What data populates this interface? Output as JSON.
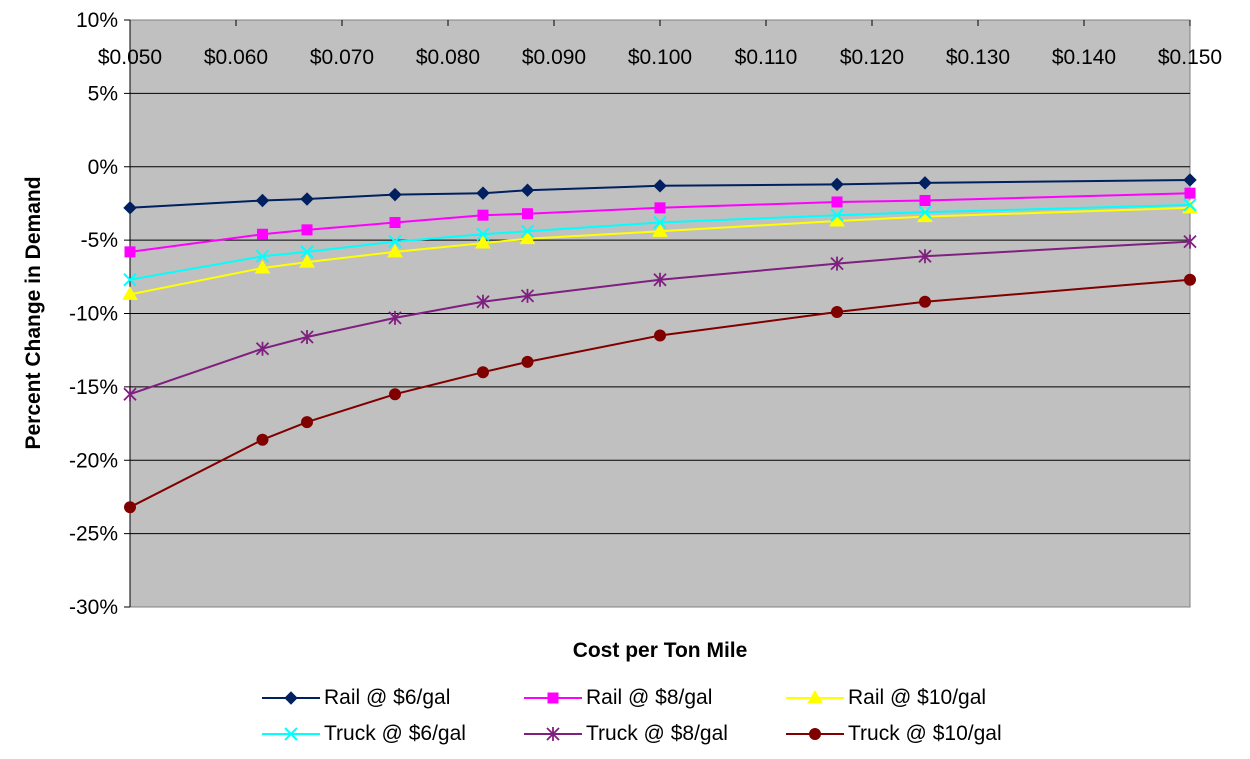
{
  "chart_data": {
    "type": "line",
    "xlabel": "Cost per Ton Mile",
    "ylabel": "Percent Change in Demand",
    "xlim": [
      0.05,
      0.15
    ],
    "ylim": [
      -30,
      10
    ],
    "x_ticks": [
      "$0.050",
      "$0.060",
      "$0.070",
      "$0.080",
      "$0.090",
      "$0.100",
      "$0.110",
      "$0.120",
      "$0.130",
      "$0.140",
      "$0.150"
    ],
    "x_tick_values": [
      0.05,
      0.06,
      0.07,
      0.08,
      0.09,
      0.1,
      0.11,
      0.12,
      0.13,
      0.14,
      0.15
    ],
    "y_ticks": [
      "10%",
      "5%",
      "0%",
      "-5%",
      "-10%",
      "-15%",
      "-20%",
      "-25%",
      "-30%"
    ],
    "y_tick_values": [
      10,
      5,
      0,
      -5,
      -10,
      -15,
      -20,
      -25,
      -30
    ],
    "grid": true,
    "plot_background": "#C0C0C0",
    "legend_position": "bottom",
    "x": [
      0.05,
      0.0625,
      0.0667,
      0.075,
      0.0833,
      0.0875,
      0.1,
      0.1167,
      0.125,
      0.15
    ],
    "series": [
      {
        "name": "Rail @ $6/gal",
        "color": "#002060",
        "marker": "diamond",
        "values": [
          -2.8,
          -2.3,
          -2.2,
          -1.9,
          -1.8,
          -1.6,
          -1.3,
          -1.2,
          -1.1,
          -0.9
        ]
      },
      {
        "name": "Rail @ $8/gal",
        "color": "#FF00FF",
        "marker": "square",
        "values": [
          -5.8,
          -4.6,
          -4.3,
          -3.8,
          -3.3,
          -3.2,
          -2.8,
          -2.4,
          -2.3,
          -1.8
        ]
      },
      {
        "name": "Rail @ $10/gal",
        "color": "#FFFF00",
        "marker": "triangle",
        "values": [
          -8.7,
          -6.9,
          -6.5,
          -5.8,
          -5.2,
          -4.9,
          -4.4,
          -3.7,
          -3.4,
          -2.8
        ]
      },
      {
        "name": "Truck @ $6/gal",
        "color": "#00FFFF",
        "marker": "x",
        "values": [
          -7.7,
          -6.1,
          -5.8,
          -5.1,
          -4.6,
          -4.4,
          -3.8,
          -3.3,
          -3.1,
          -2.6
        ]
      },
      {
        "name": "Truck @ $8/gal",
        "color": "#7F1F7F",
        "marker": "star",
        "values": [
          -15.5,
          -12.4,
          -11.6,
          -10.3,
          -9.2,
          -8.8,
          -7.7,
          -6.6,
          -6.1,
          -5.1
        ]
      },
      {
        "name": "Truck @ $10/gal",
        "color": "#800000",
        "marker": "circle",
        "values": [
          -23.2,
          -18.6,
          -17.4,
          -15.5,
          -14.0,
          -13.3,
          -11.5,
          -9.9,
          -9.2,
          -7.7
        ]
      }
    ]
  }
}
